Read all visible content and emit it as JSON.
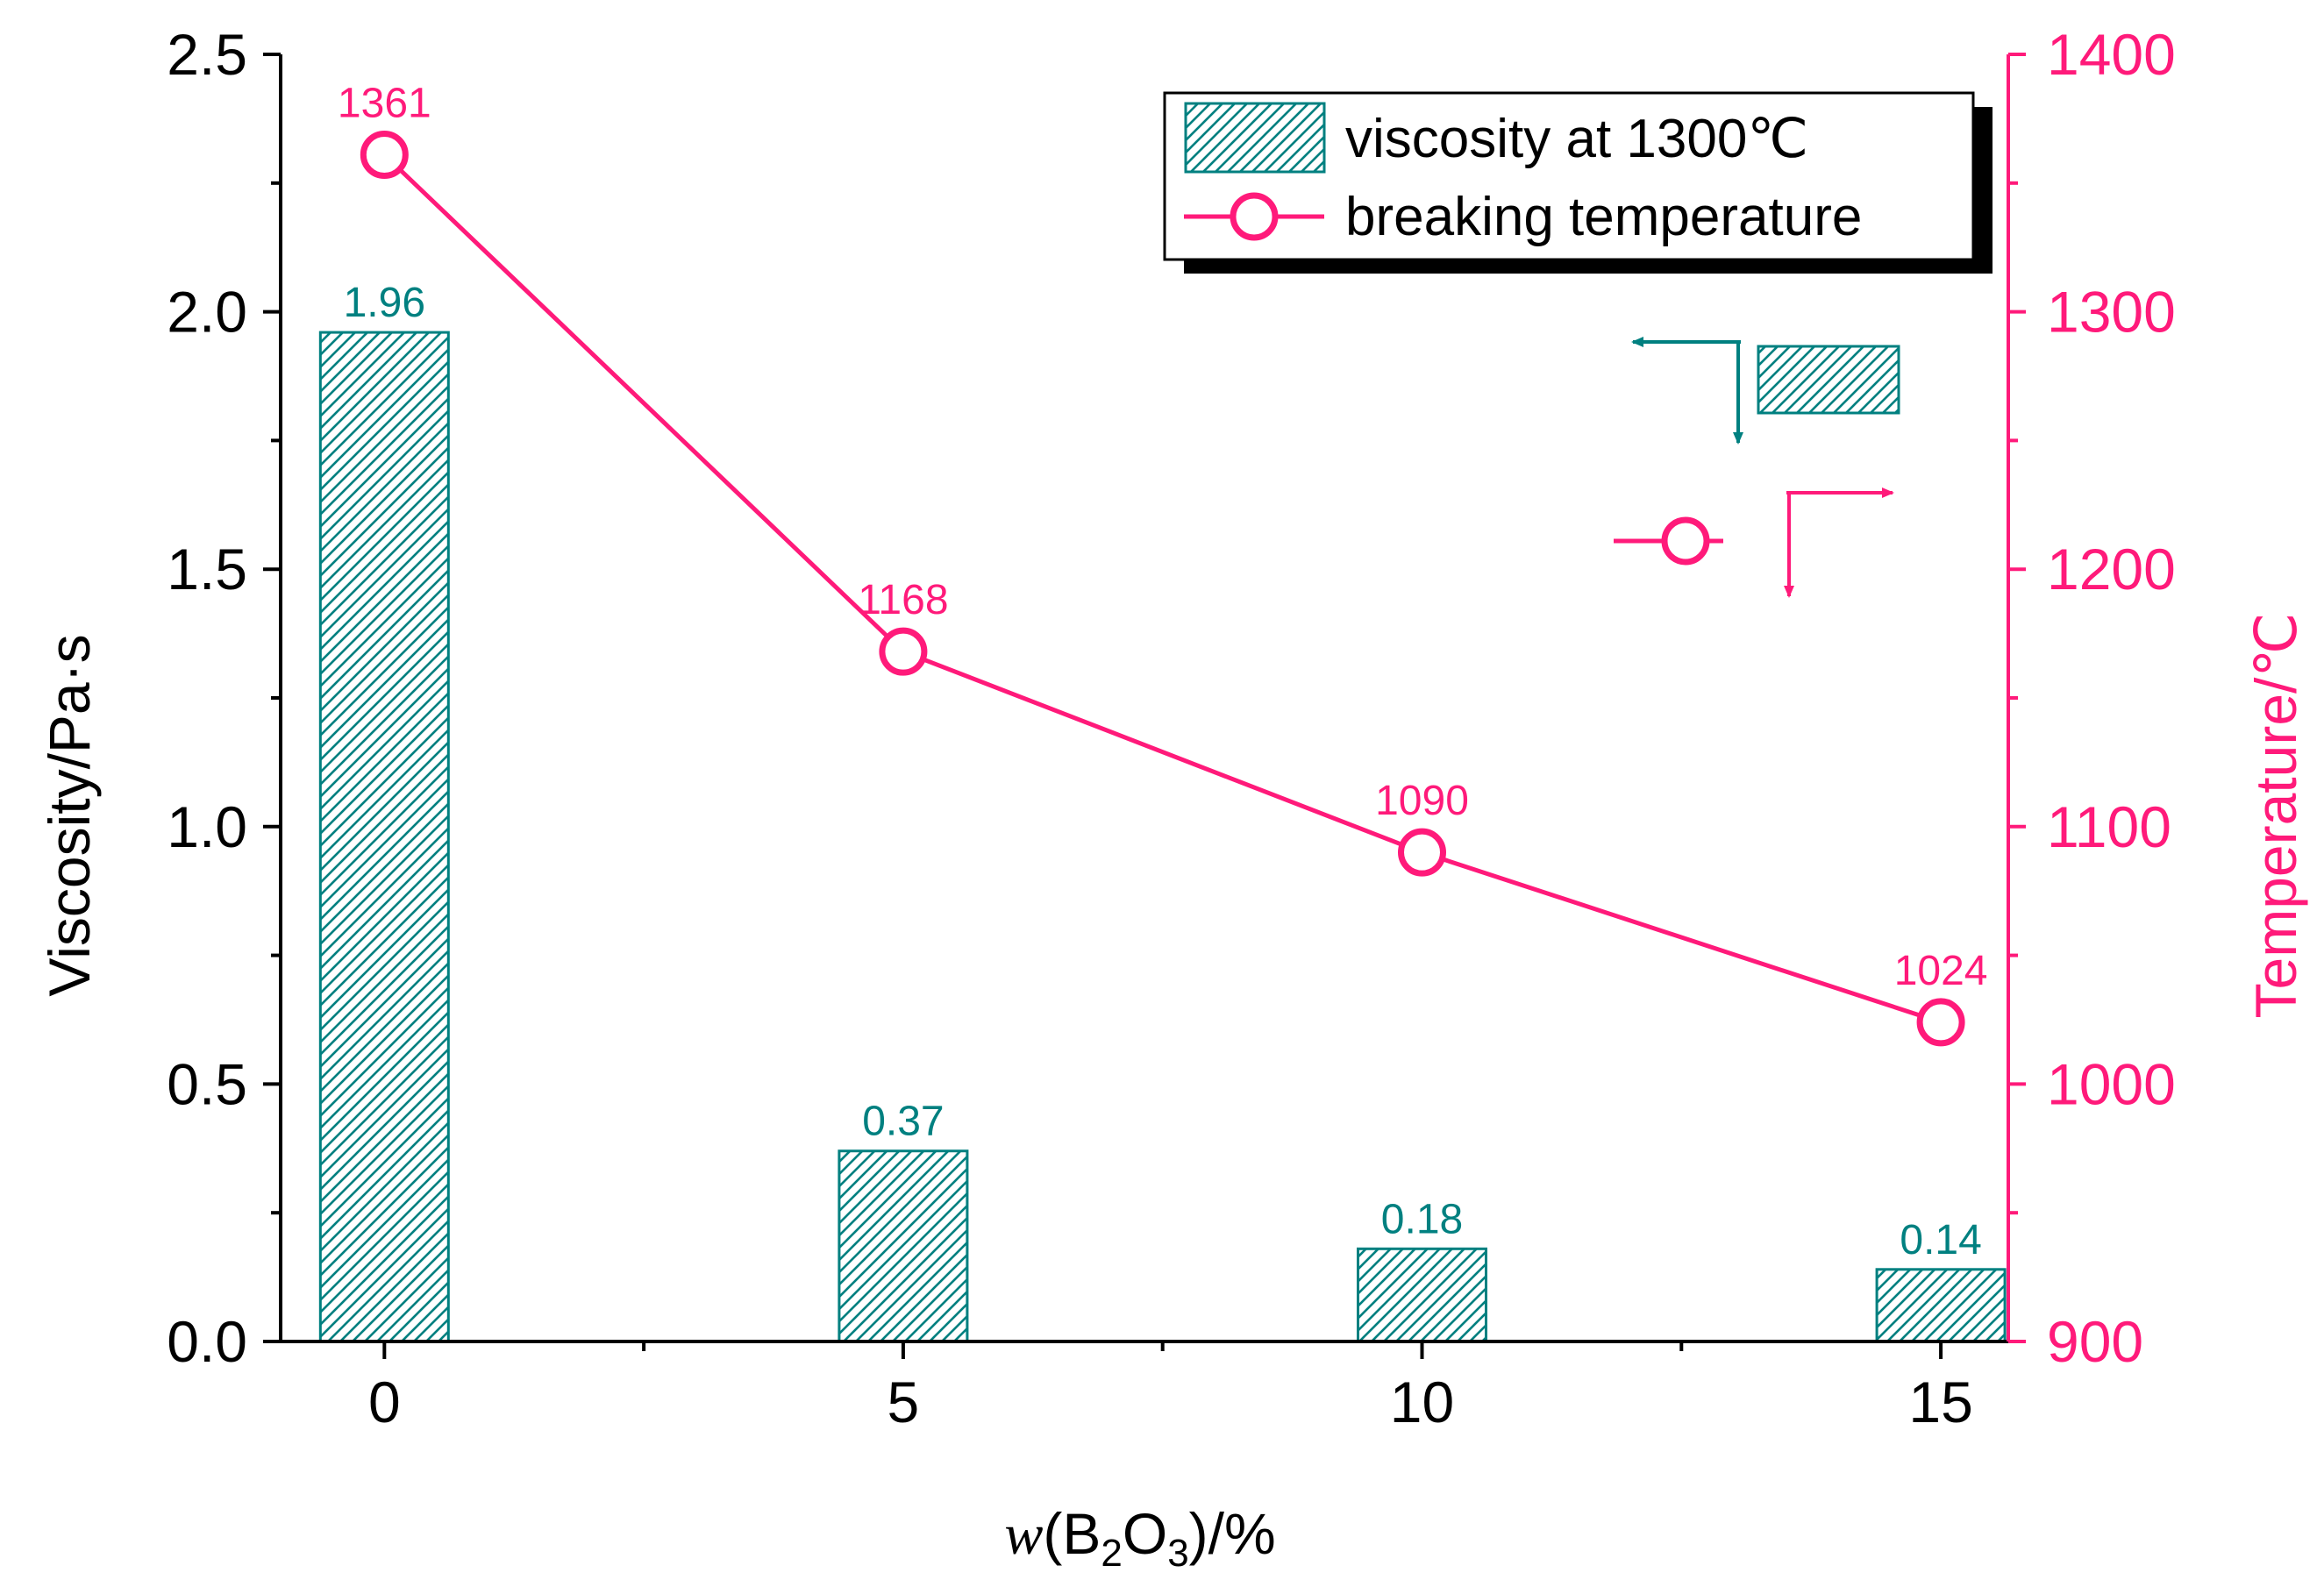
{
  "chart_data": {
    "type": "bar+line",
    "x": [
      0,
      5,
      10,
      15
    ],
    "xlabel": {
      "prefix": "w",
      "a": "(B",
      "sub1": "2",
      "b": "O",
      "sub2": "3",
      "c": ")/%"
    },
    "xticks": [
      "0",
      "5",
      "10",
      "15"
    ],
    "xlim": [
      -1,
      15.65
    ],
    "left_axis": {
      "label": "Viscosity/Pa·s",
      "ylim": [
        0,
        2.5
      ],
      "ticks": [
        "0.0",
        "0.5",
        "1.0",
        "1.5",
        "2.0",
        "2.5"
      ]
    },
    "right_axis": {
      "label": "Temperature/℃",
      "ylim": [
        900,
        1400
      ],
      "ticks": [
        "900",
        "1000",
        "1100",
        "1200",
        "1300",
        "1400"
      ]
    },
    "series": [
      {
        "name": "viscosity at 1300℃",
        "type": "bar",
        "axis": "left",
        "values": [
          1.96,
          0.37,
          0.18,
          0.14
        ],
        "labels": [
          "1.96",
          "0.37",
          "0.18",
          "0.14"
        ],
        "color": "#008080",
        "fill": "hatched"
      },
      {
        "name": "breaking temperature",
        "type": "line",
        "axis": "right",
        "values": [
          1361,
          1168,
          1090,
          1024
        ],
        "labels": [
          "1361",
          "1168",
          "1090",
          "1024"
        ],
        "color": "#ff1a7a",
        "marker": "open-circle"
      }
    ],
    "legend": {
      "position": "top-right",
      "entries": [
        "viscosity at 1300℃",
        "breaking temperature"
      ]
    }
  }
}
